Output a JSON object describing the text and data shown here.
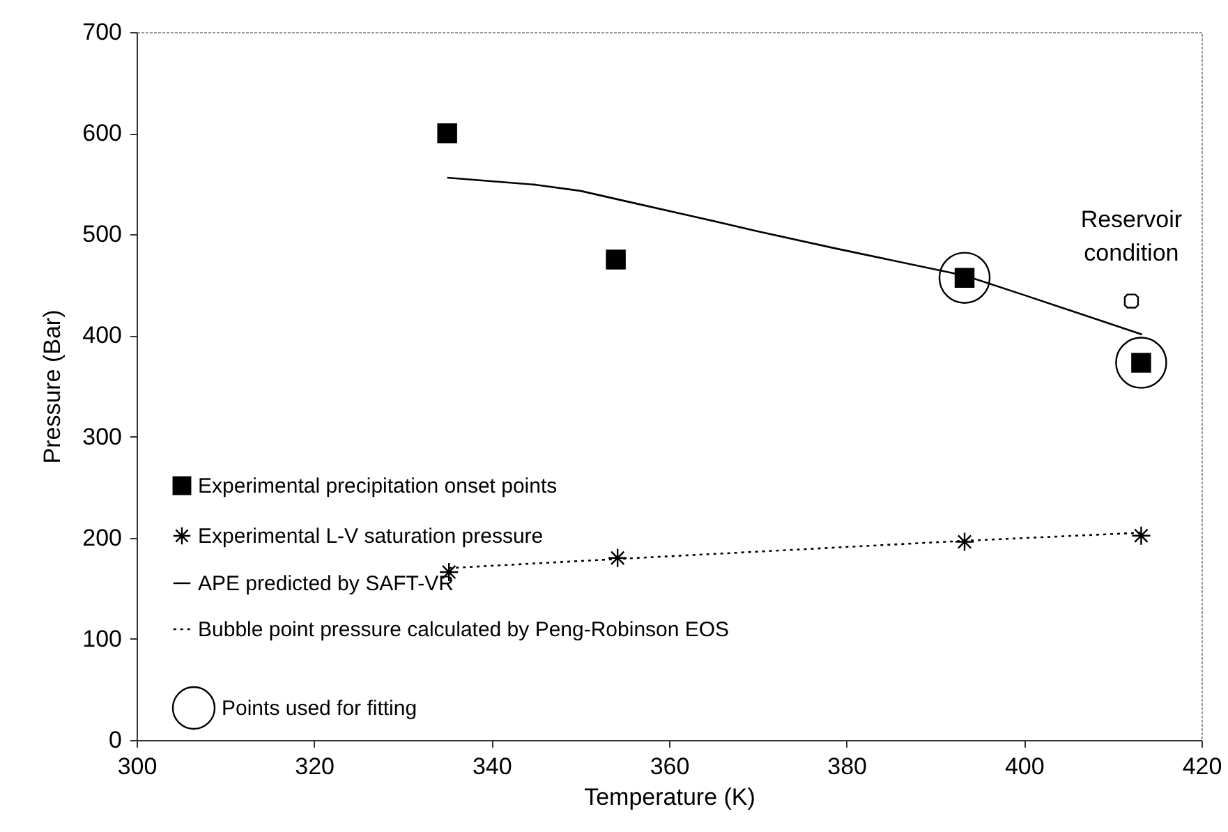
{
  "chart_data": {
    "type": "scatter",
    "xlabel": "Temperature (K)",
    "ylabel": "Pressure (Bar)",
    "xlim": [
      300,
      420
    ],
    "xticks": [
      300,
      320,
      340,
      360,
      380,
      400,
      420
    ],
    "ylim": [
      0,
      700
    ],
    "yticks": [
      0,
      100,
      200,
      300,
      400,
      500,
      600,
      700
    ],
    "legend": "left",
    "annotations": [
      {
        "text": "Reservoir condition",
        "x": 412.1,
        "y": 434
      }
    ],
    "series": [
      {
        "name": "Experimental precipitation onset points",
        "marker": "square",
        "color": "#000000",
        "x": [
          335,
          354,
          393.3,
          413.2
        ],
        "values": [
          600,
          475,
          457,
          373
        ]
      },
      {
        "name": "Experimental L-V saturation pressure",
        "marker": "cross",
        "color": "#000000",
        "x": [
          335.2,
          354.2,
          393.3,
          413.2
        ],
        "values": [
          166,
          180,
          196,
          202
        ]
      },
      {
        "name": "APE predicted by SAFT-VR",
        "type": "line",
        "marker": "none",
        "line_style": "solid",
        "color": "#000000",
        "x": [
          335,
          345,
          350,
          355,
          362.6,
          370,
          378.8,
          393.4,
          400,
          413.3
        ],
        "values": [
          556,
          549,
          543,
          533,
          518,
          503,
          486,
          459,
          440,
          401
        ]
      },
      {
        "name": "Bubble point pressure calculated by Peng-Robinson EOS",
        "type": "line",
        "marker": "none",
        "line_style": "dotted",
        "color": "#000000",
        "x": [
          335.2,
          354.2,
          393.3,
          413.2
        ],
        "values": [
          170,
          179,
          197,
          205
        ]
      },
      {
        "name": "Points used for fitting",
        "marker": "circle",
        "color": "#000000",
        "x": [
          393.3,
          413.2
        ],
        "values": [
          457,
          373
        ]
      },
      {
        "marker": "circle",
        "color": "#000000",
        "x": [
          412.1
        ],
        "values": [
          434
        ]
      }
    ]
  }
}
